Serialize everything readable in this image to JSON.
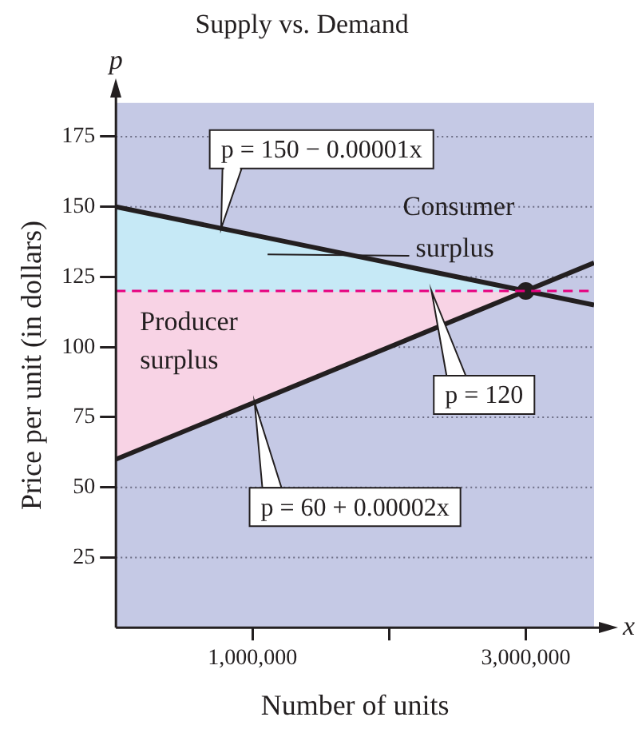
{
  "chart_data": {
    "type": "line",
    "title": "Supply vs. Demand",
    "xlabel": "Number of units",
    "ylabel": "Price per unit (in dollars)",
    "xlim": [
      0,
      3500000
    ],
    "xticks": [
      {
        "value": 1000000,
        "label": "1,000,000"
      },
      {
        "value": 2000000,
        "label": null
      },
      {
        "value": 3000000,
        "label": "3,000,000"
      }
    ],
    "ylim": [
      0,
      187
    ],
    "yticks": [
      25,
      50,
      75,
      100,
      125,
      150,
      175
    ],
    "grid": "y",
    "legend": false,
    "marker": "none",
    "series": [
      {
        "name": "Consumer surplus",
        "type": "area",
        "color": "#c6e9f6",
        "x": [
          0,
          3000000,
          0
        ],
        "values": [
          150,
          120,
          120
        ]
      },
      {
        "name": "Producer surplus",
        "type": "area",
        "color": "#f8d3e5",
        "x": [
          0,
          3000000,
          0
        ],
        "values": [
          120,
          120,
          60
        ]
      },
      {
        "name": "p = 150 − 0.00001x",
        "type": "line",
        "color": "#231f20",
        "x": [
          0,
          3500000
        ],
        "values": [
          150,
          115
        ]
      },
      {
        "name": "p = 60 + 0.00002x",
        "type": "line",
        "color": "#231f20",
        "x": [
          0,
          3500000
        ],
        "values": [
          60,
          130
        ]
      },
      {
        "type": "scatter",
        "color": "#231f20",
        "marker": "circle",
        "x": [
          3000000
        ],
        "values": [
          120
        ]
      }
    ],
    "ref_lines": [
      {
        "axis": "y",
        "value": 120,
        "label": "p = 120",
        "color": "#e6007e",
        "line_style": "dashed"
      }
    ],
    "annotations": [
      "p",
      "x"
    ]
  }
}
